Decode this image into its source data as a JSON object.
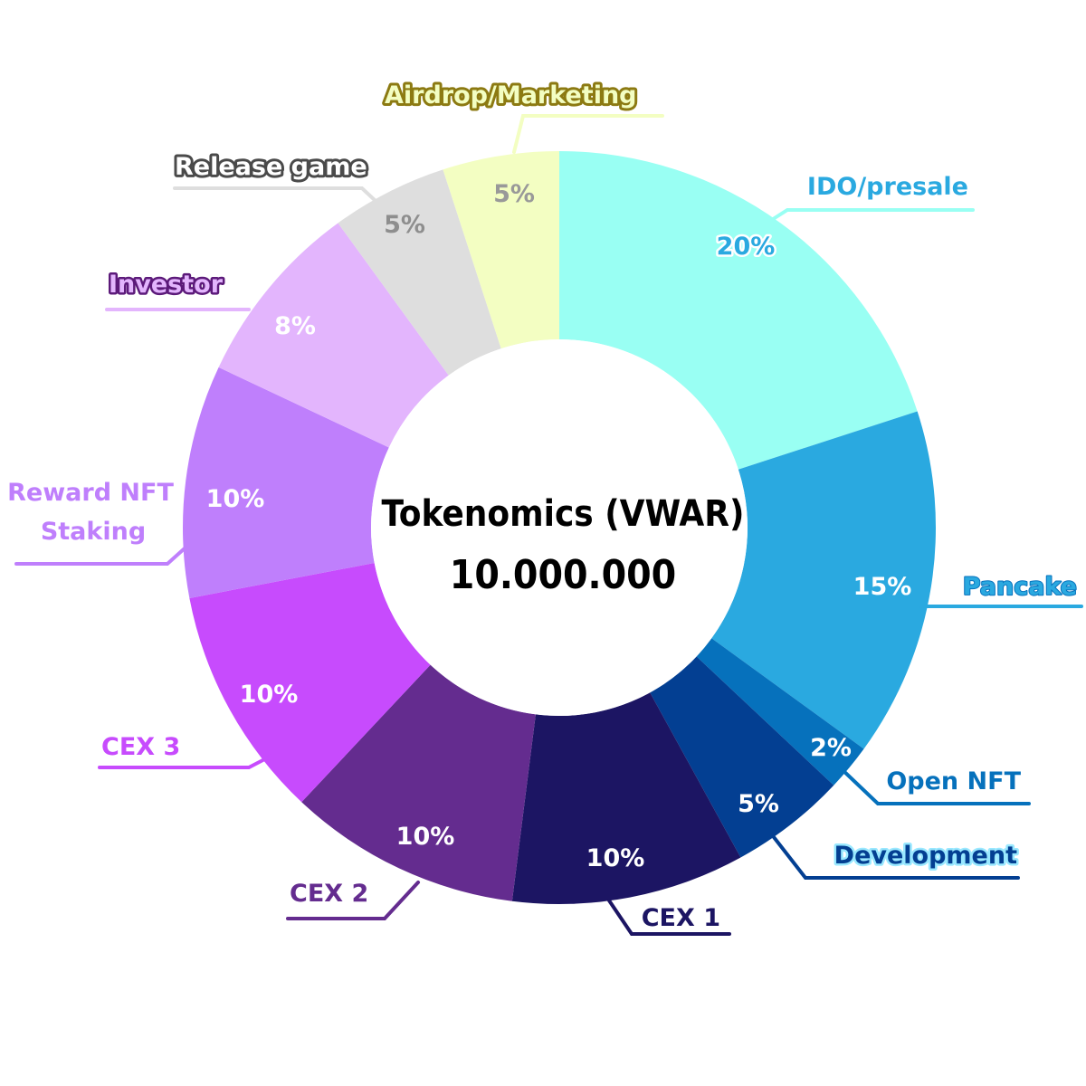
{
  "chart_data": {
    "type": "pie",
    "center_title": "Tokenomics (VWAR)",
    "center_total": "10.000.000",
    "slices": [
      {
        "label": "IDO/presale",
        "value": 20,
        "pct_label": "20%",
        "color": "#99fff3"
      },
      {
        "label": "Pancake",
        "value": 15,
        "pct_label": "15%",
        "color": "#2aa9e0"
      },
      {
        "label": "Open NFT",
        "value": 2,
        "pct_label": "2%",
        "color": "#0671bc"
      },
      {
        "label": "Development",
        "value": 5,
        "pct_label": "5%",
        "color": "#033f92"
      },
      {
        "label": "CEX 1",
        "value": 10,
        "pct_label": "10%",
        "color": "#1c1563"
      },
      {
        "label": "CEX 2",
        "value": 10,
        "pct_label": "10%",
        "color": "#642c8f"
      },
      {
        "label": "CEX 3",
        "value": 10,
        "pct_label": "10%",
        "color": "#c74bfd"
      },
      {
        "label": "Reward NFT Staking",
        "label_lines": [
          "Reward NFT",
          "Staking"
        ],
        "value": 10,
        "pct_label": "10%",
        "color": "#bf7ffc"
      },
      {
        "label": "Investor",
        "value": 8,
        "pct_label": "8%",
        "color": "#e3b5fd"
      },
      {
        "label": "Release game",
        "value": 5,
        "pct_label": "5%",
        "color": "#dedede"
      },
      {
        "label": "Airdrop/Marketing",
        "value": 5,
        "pct_label": "5%",
        "color": "#f3fec2"
      }
    ]
  }
}
